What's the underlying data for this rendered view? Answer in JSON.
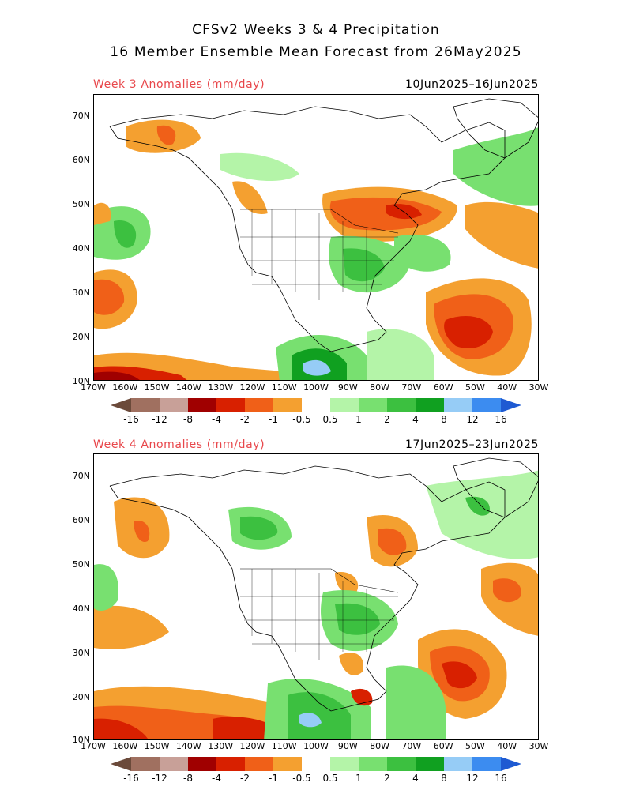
{
  "figure": {
    "title_line1": "CFSv2 Weeks 3 & 4 Precipitation",
    "title_line2": "16 Member Ensemble Mean Forecast from 26May2025"
  },
  "axes": {
    "lat_labels": [
      "70N",
      "60N",
      "50N",
      "40N",
      "30N",
      "20N",
      "10N"
    ],
    "lon_labels": [
      "170W",
      "160W",
      "150W",
      "140W",
      "130W",
      "120W",
      "110W",
      "100W",
      "90W",
      "80W",
      "70W",
      "60W",
      "50W",
      "40W",
      "30W"
    ]
  },
  "colorbar": {
    "labels": [
      "-16",
      "-12",
      "-8",
      "-4",
      "-2",
      "-1",
      "-0.5",
      "0.5",
      "1",
      "2",
      "4",
      "8",
      "12",
      "16"
    ],
    "colors": [
      "#6b4a3a",
      "#a07060",
      "#c8a098",
      "#a00000",
      "#d82000",
      "#f06018",
      "#f4a030",
      "#ffffff",
      "#b4f4a8",
      "#78e070",
      "#3cc040",
      "#10a020",
      "#96ccf6",
      "#3c8cf0",
      "#1e5ad2"
    ]
  },
  "panels": [
    {
      "label": "Week 3 Anomalies (mm/day)",
      "dates": "10Jun2025–16Jun2025"
    },
    {
      "label": "Week 4 Anomalies (mm/day)",
      "dates": "17Jun2025–23Jun2025"
    }
  ]
}
